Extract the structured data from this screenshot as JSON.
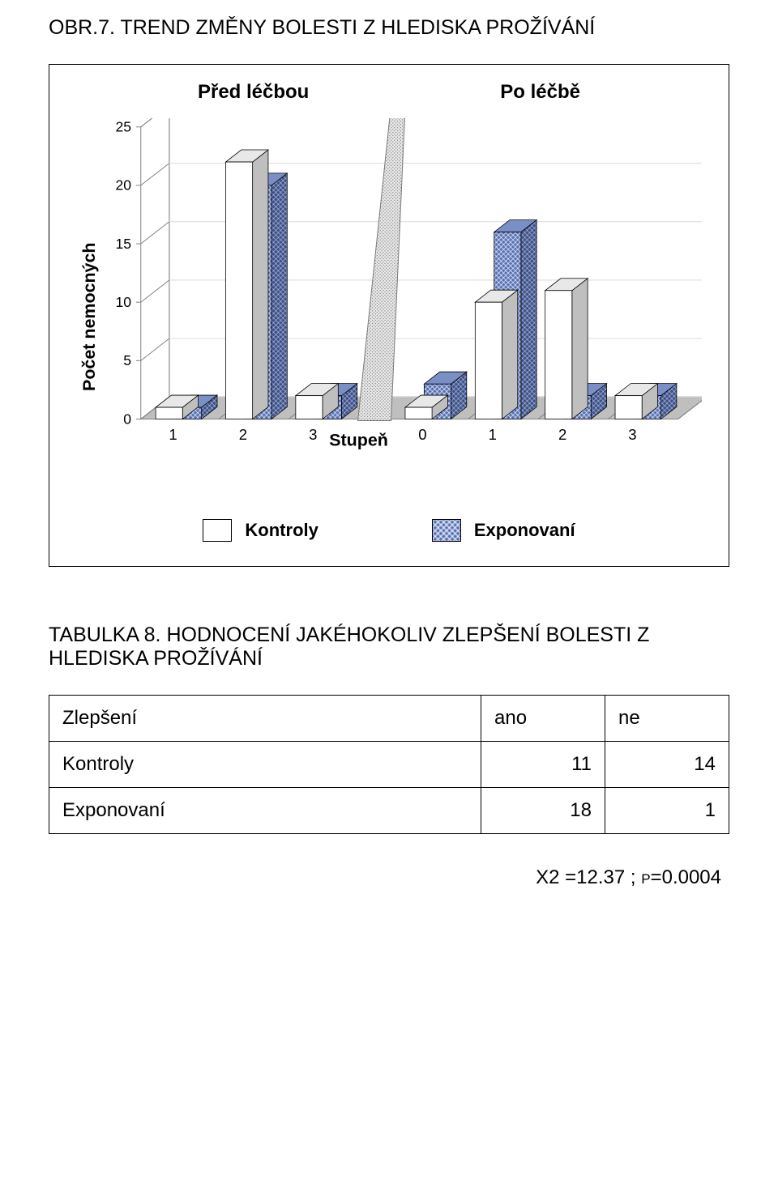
{
  "heading1": {
    "prefix": "OBR.7. T",
    "rest": "REND ZMĚNY BOLESTI Z HLEDISKA PROŽÍVÁNÍ"
  },
  "chart": {
    "type": "3d-bar",
    "panel_labels": {
      "left": "Před léčbou",
      "right": "Po léčbě"
    },
    "y_axis": {
      "label": "Počet nemocných",
      "ticks": [
        "0",
        "5",
        "10",
        "15",
        "20",
        "25"
      ],
      "ylim": [
        0,
        25
      ],
      "tick_step": 5,
      "label_fontsize": 22
    },
    "x_axis": {
      "label": "Stupeň",
      "left_categories": [
        "1",
        "2",
        "3"
      ],
      "right_categories": [
        "0",
        "1",
        "2",
        "3"
      ],
      "label_fontsize": 22
    },
    "series": [
      {
        "name": "Kontroly",
        "style": "white",
        "left_values": [
          1,
          22,
          2
        ],
        "right_values": [
          1,
          10,
          11,
          2
        ]
      },
      {
        "name": "Exponovaní",
        "style": "hatch",
        "left_values": [
          1,
          20,
          2
        ],
        "right_values": [
          3,
          16,
          2,
          2
        ]
      }
    ],
    "legend": {
      "items": [
        {
          "label": "Kontroly",
          "style": "white"
        },
        {
          "label": "Exponovaní",
          "style": "hatch"
        }
      ]
    },
    "colors": {
      "bar_white_face": "#ffffff",
      "bar_white_side": "#bfbfbf",
      "bar_white_top": "#e8e8e8",
      "bar_hatch_base": "#556fb5",
      "bar_hatch_side": "#3a4f8a",
      "bar_hatch_top": "#7a8fc6",
      "floor": "#bfbfbf",
      "wall": "#ffffff",
      "axis": "#808080",
      "divider_fill": "#d9d9d9",
      "grid": "#d9d9d9"
    }
  },
  "heading2": {
    "prefix": "T",
    "label1": "ABULKA",
    "num": " 8. H",
    "label2": "ODNOCENÍ JAKÉHOKOLIV ZLEPŠENÍ BOLESTI Z HLEDISKA PROŽÍVÁNÍ"
  },
  "table": {
    "header": {
      "rowlabel": "Zlepšení",
      "col1": "ano",
      "col2": "ne"
    },
    "rows": [
      {
        "label": "Kontroly",
        "c1": "11",
        "c2": "14"
      },
      {
        "label": "Exponovaní",
        "c1": "18",
        "c2": "1"
      }
    ]
  },
  "stat": {
    "chi2_label": "X2 =",
    "chi2_val": "12.37",
    "sep": " ; ",
    "p_label": "p=",
    "p_val": "0.0004"
  }
}
